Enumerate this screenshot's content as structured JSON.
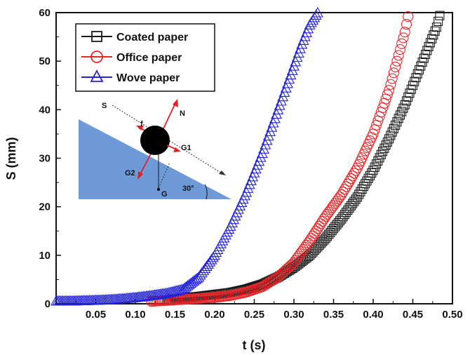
{
  "chart_data": {
    "type": "scatter",
    "title": "",
    "xlabel": "t (s)",
    "ylabel": "S (mm)",
    "xlim": [
      0.0,
      0.5
    ],
    "ylim": [
      0,
      60
    ],
    "xticks": [
      "0.05",
      "0.10",
      "0.15",
      "0.20",
      "0.25",
      "0.30",
      "0.35",
      "0.40",
      "0.45",
      "0.50"
    ],
    "yticks": [
      "0",
      "10",
      "20",
      "30",
      "40",
      "50",
      "60"
    ],
    "grid": false,
    "legend_position": "top-left",
    "series": [
      {
        "name": "Coated paper",
        "marker": "square",
        "color": "#1a1a1a",
        "x": [
          0.14,
          0.16,
          0.18,
          0.2,
          0.22,
          0.24,
          0.26,
          0.28,
          0.3,
          0.32,
          0.34,
          0.36,
          0.38,
          0.4,
          0.42,
          0.44,
          0.46,
          0.48,
          0.485
        ],
        "y": [
          0.8,
          1.2,
          1.5,
          1.9,
          2.3,
          3.0,
          4.0,
          5.5,
          7.5,
          10.0,
          13.5,
          17.5,
          22.0,
          27.5,
          34.0,
          41.0,
          49.0,
          57.0,
          60.0
        ]
      },
      {
        "name": "Office paper",
        "marker": "circle",
        "color": "#e8262a",
        "x": [
          0.12,
          0.14,
          0.16,
          0.18,
          0.2,
          0.22,
          0.24,
          0.26,
          0.28,
          0.3,
          0.32,
          0.34,
          0.36,
          0.38,
          0.4,
          0.42,
          0.43,
          0.44,
          0.445
        ],
        "y": [
          0.5,
          0.7,
          0.9,
          1.1,
          1.3,
          1.7,
          2.4,
          3.5,
          5.5,
          8.5,
          13.0,
          18.0,
          22.5,
          28.0,
          35.0,
          44.0,
          50.0,
          56.0,
          60.0
        ]
      },
      {
        "name": "Wove paper",
        "marker": "triangle",
        "color": "#2323d8",
        "x": [
          0.0,
          0.02,
          0.04,
          0.06,
          0.08,
          0.1,
          0.12,
          0.14,
          0.16,
          0.18,
          0.2,
          0.22,
          0.24,
          0.26,
          0.28,
          0.3,
          0.31,
          0.32,
          0.33
        ],
        "y": [
          0.6,
          0.6,
          0.7,
          0.8,
          1.0,
          1.3,
          1.7,
          2.2,
          3.0,
          5.5,
          10.0,
          16.0,
          23.0,
          31.0,
          40.0,
          49.0,
          53.5,
          57.5,
          60.0
        ]
      }
    ],
    "inset": {
      "labels": [
        "S",
        "N",
        "f",
        "G1",
        "G2",
        "G",
        "30°"
      ],
      "colors": {
        "fill": "#6e9bd8",
        "arrow": "#e21f26",
        "ball": "#000000"
      }
    }
  }
}
